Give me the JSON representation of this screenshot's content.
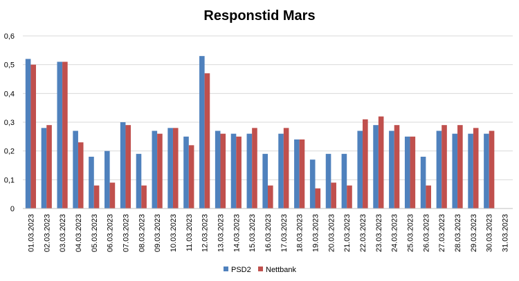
{
  "chart_data": {
    "type": "bar",
    "title": "Responstid Mars",
    "xlabel": "",
    "ylabel": "",
    "ylim": [
      0,
      0.6
    ],
    "yticks": [
      "0",
      "0,1",
      "0,2",
      "0,3",
      "0,4",
      "0,5",
      "0,6"
    ],
    "grid": true,
    "legend_position": "bottom",
    "categories": [
      "01.03.2023",
      "02.03.2023",
      "03.03.2023",
      "04.03.2023",
      "05.03.2023",
      "06.03.2023",
      "07.03.2023",
      "08.03.2023",
      "09.03.2023",
      "10.03.2023",
      "11.03.2023",
      "12.03.2023",
      "13.03.2023",
      "14.03.2023",
      "15.03.2023",
      "16.03.2023",
      "17.03.2023",
      "18.03.2023",
      "19.03.2023",
      "20.03.2023",
      "21.03.2023",
      "22.03.2023",
      "23.03.2023",
      "24.03.2023",
      "25.03.2023",
      "26.03.2023",
      "27.03.2023",
      "28.03.2023",
      "29.03.2023",
      "30.03.2023",
      "31.03.2023"
    ],
    "series": [
      {
        "name": "PSD2",
        "color": "#4f81bd",
        "values": [
          0.52,
          0.28,
          0.51,
          0.27,
          0.18,
          0.2,
          0.3,
          0.19,
          0.27,
          0.28,
          0.25,
          0.53,
          0.27,
          0.26,
          0.26,
          0.19,
          0.26,
          0.24,
          0.17,
          0.19,
          0.19,
          0.27,
          0.29,
          0.27,
          0.25,
          0.18,
          0.27,
          0.26,
          0.26,
          0.26,
          null
        ]
      },
      {
        "name": "Nettbank",
        "color": "#c0504d",
        "values": [
          0.5,
          0.29,
          0.51,
          0.23,
          0.08,
          0.09,
          0.29,
          0.08,
          0.26,
          0.28,
          0.22,
          0.47,
          0.26,
          0.25,
          0.28,
          0.08,
          0.28,
          0.24,
          0.07,
          0.09,
          0.08,
          0.31,
          0.32,
          0.29,
          0.25,
          0.08,
          0.29,
          0.29,
          0.28,
          0.27,
          null
        ]
      }
    ]
  }
}
